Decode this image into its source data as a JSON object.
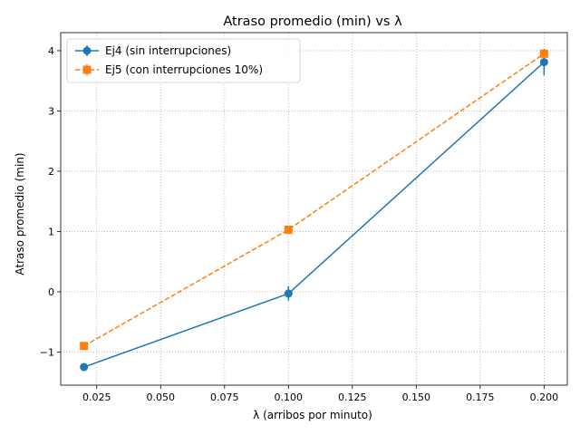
{
  "chart_data": {
    "type": "line",
    "title": "Atraso promedio (min) vs λ",
    "xlabel": "λ (arribos por minuto)",
    "ylabel": "Atraso promedio (min)",
    "xlim": [
      0.0109,
      0.2091
    ],
    "ylim": [
      -1.55,
      4.3
    ],
    "xticks": [
      0.025,
      0.05,
      0.075,
      0.1,
      0.125,
      0.15,
      0.175,
      0.2
    ],
    "xtick_labels": [
      "0.025",
      "0.050",
      "0.075",
      "0.100",
      "0.125",
      "0.150",
      "0.175",
      "0.200"
    ],
    "yticks": [
      -1,
      0,
      1,
      2,
      3,
      4
    ],
    "ytick_labels": [
      "−1",
      "0",
      "1",
      "2",
      "3",
      "4"
    ],
    "grid": true,
    "legend_position": "top-left",
    "series": [
      {
        "name": "Ej4 (sin interrupciones)",
        "color": "#1f77b4",
        "marker": "circle",
        "linestyle": "solid",
        "x": [
          0.02,
          0.1,
          0.2
        ],
        "y": [
          -1.25,
          -0.03,
          3.81
        ],
        "yerr": [
          0.03,
          0.12,
          0.22
        ]
      },
      {
        "name": "Ej5 (con interrupciones 10%)",
        "color": "#ff7f0e",
        "marker": "square",
        "linestyle": "dashed",
        "x": [
          0.02,
          0.1,
          0.2
        ],
        "y": [
          -0.9,
          1.03,
          3.95
        ],
        "yerr": [
          0.02,
          0.04,
          0.06
        ]
      }
    ]
  }
}
